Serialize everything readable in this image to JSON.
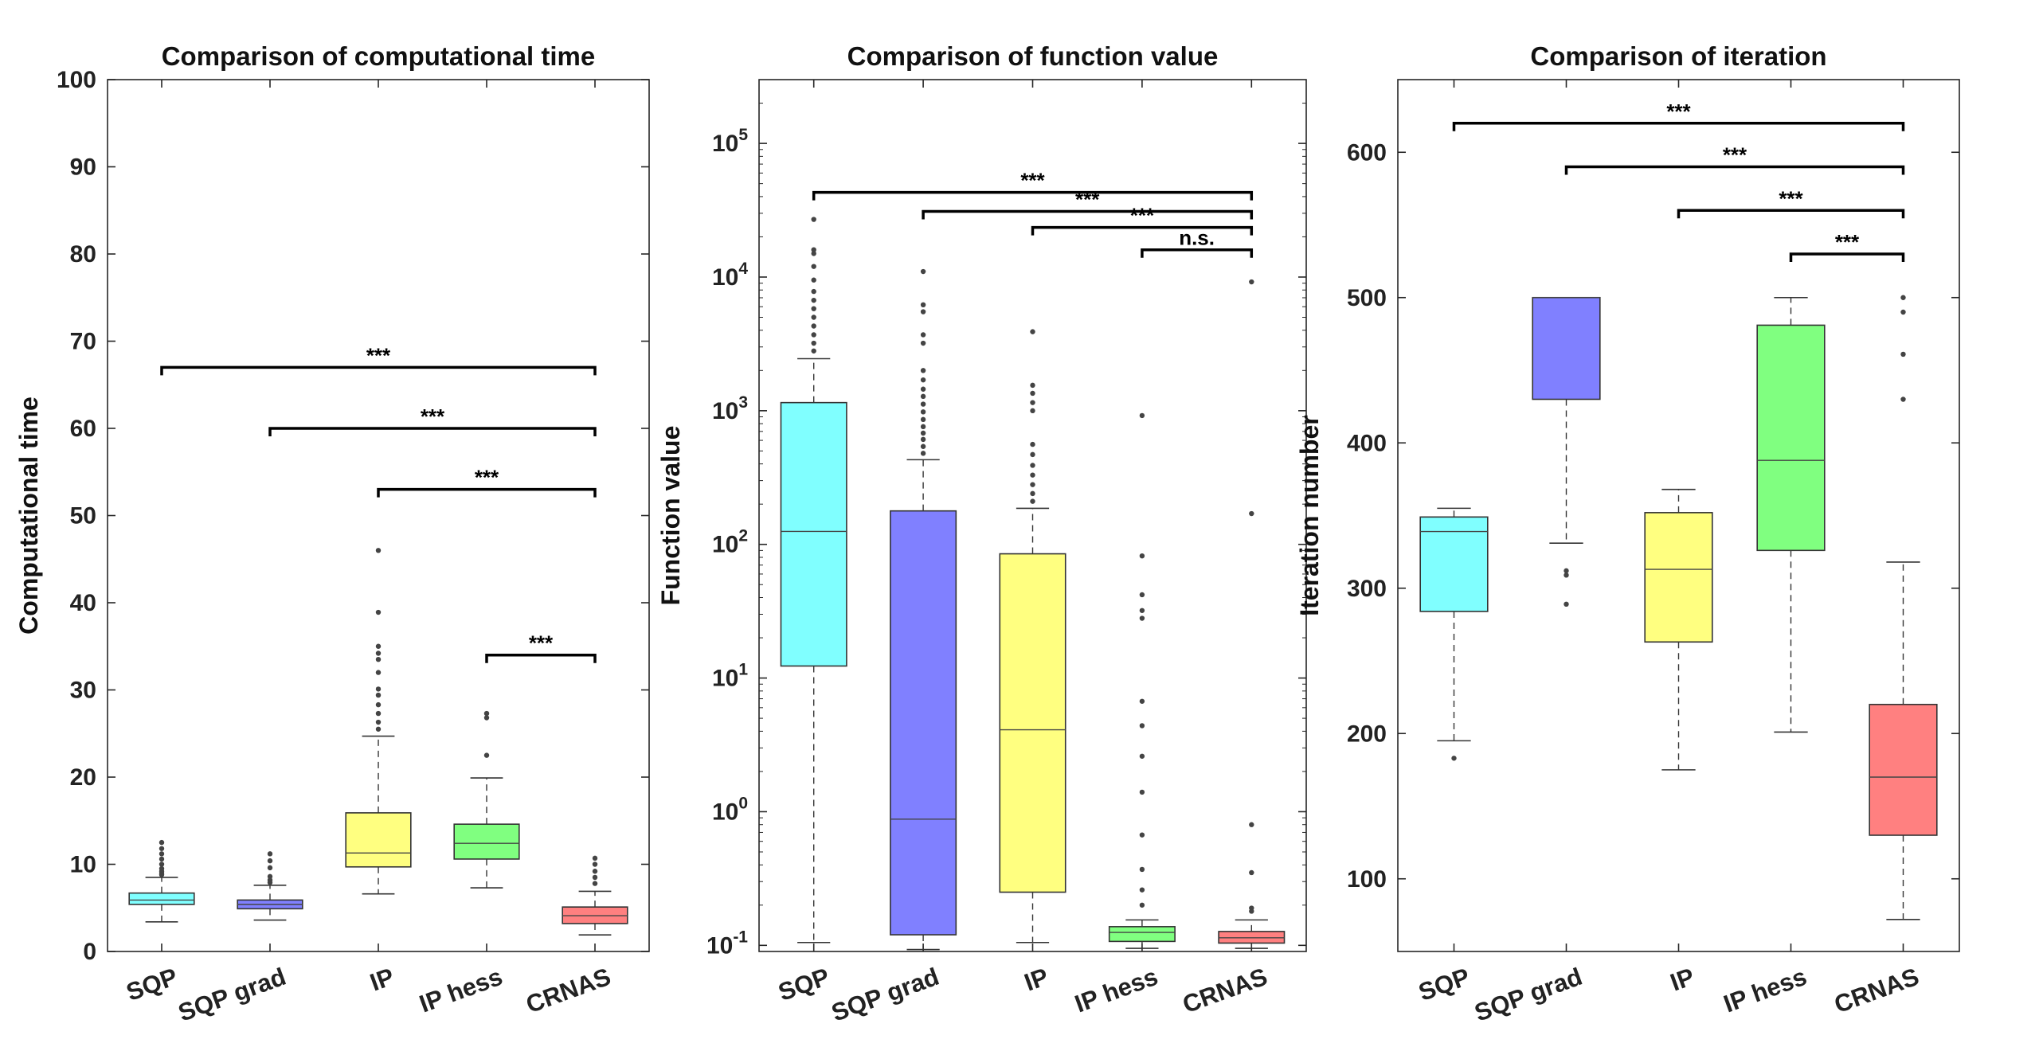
{
  "chart_data": [
    {
      "type": "box",
      "title": "Comparison of computational time",
      "xlabel": "",
      "ylabel": "Computational time",
      "yscale": "linear",
      "ylim": [
        0,
        100
      ],
      "yticks": [
        0,
        10,
        20,
        30,
        40,
        50,
        60,
        70,
        80,
        90,
        100
      ],
      "ytick_labels": [
        "0",
        "10",
        "20",
        "30",
        "40",
        "50",
        "60",
        "70",
        "80",
        "90",
        "100"
      ],
      "categories": [
        "SQP",
        "SQP grad",
        "IP",
        "IP hess",
        "CRNAS"
      ],
      "colors": [
        "#80ffff",
        "#8080ff",
        "#ffff80",
        "#80ff80",
        "#ff8080"
      ],
      "boxes": [
        {
          "whisker_low": 3.4,
          "q1": 5.4,
          "median": 5.9,
          "q3": 6.7,
          "whisker_high": 8.5,
          "outliers": [
            8.8,
            9.0,
            9.2,
            9.5,
            10.0,
            10.6,
            11.2,
            11.8,
            12.5
          ]
        },
        {
          "whisker_low": 3.6,
          "q1": 4.9,
          "median": 5.4,
          "q3": 5.9,
          "whisker_high": 7.6,
          "outliers": [
            7.9,
            8.2,
            8.6,
            9.6,
            10.4,
            11.2
          ]
        },
        {
          "whisker_low": 6.6,
          "q1": 9.7,
          "median": 11.3,
          "q3": 15.9,
          "whisker_high": 24.7,
          "outliers": [
            25.5,
            26.3,
            27.3,
            28.3,
            29.4,
            30.1,
            32.0,
            33.5,
            34.2,
            35.0,
            38.9,
            46.0
          ]
        },
        {
          "whisker_low": 7.3,
          "q1": 10.6,
          "median": 12.4,
          "q3": 14.6,
          "whisker_high": 19.9,
          "outliers": [
            22.5,
            26.8,
            27.3
          ]
        },
        {
          "whisker_low": 1.9,
          "q1": 3.2,
          "median": 4.1,
          "q3": 5.1,
          "whisker_high": 6.9,
          "outliers": [
            7.8,
            8.5,
            9.2,
            10.0,
            10.7
          ]
        }
      ],
      "significance": [
        {
          "from": "SQP",
          "to": "CRNAS",
          "y": 67,
          "label": "***"
        },
        {
          "from": "SQP grad",
          "to": "CRNAS",
          "y": 60,
          "label": "***"
        },
        {
          "from": "IP",
          "to": "CRNAS",
          "y": 53,
          "label": "***"
        },
        {
          "from": "IP hess",
          "to": "CRNAS",
          "y": 34,
          "label": "***"
        }
      ]
    },
    {
      "type": "box",
      "title": "Comparison of function value",
      "xlabel": "",
      "ylabel": "Function value",
      "yscale": "log",
      "ylim": [
        0.09,
        300000
      ],
      "yticks": [
        0.1,
        1,
        10,
        100,
        1000,
        10000,
        100000
      ],
      "ytick_labels": [
        [
          "10",
          "-1"
        ],
        [
          "10",
          "0"
        ],
        [
          "10",
          "1"
        ],
        [
          "10",
          "2"
        ],
        [
          "10",
          "3"
        ],
        [
          "10",
          "4"
        ],
        [
          "10",
          "5"
        ]
      ],
      "categories": [
        "SQP",
        "SQP grad",
        "IP",
        "IP hess",
        "CRNAS"
      ],
      "colors": [
        "#80ffff",
        "#8080ff",
        "#ffff80",
        "#80ff80",
        "#ff8080"
      ],
      "boxes": [
        {
          "whisker_low": 0.105,
          "q1": 12.3,
          "median": 125,
          "q3": 1150,
          "whisker_high": 2450,
          "outliers": [
            2800,
            3200,
            3700,
            4300,
            5000,
            5800,
            6700,
            7800,
            9500,
            12000,
            15000,
            16000,
            27000
          ]
        },
        {
          "whisker_low": 0.093,
          "q1": 0.12,
          "median": 0.88,
          "q3": 178,
          "whisker_high": 430,
          "outliers": [
            480,
            540,
            610,
            680,
            760,
            860,
            980,
            1120,
            1280,
            1450,
            1700,
            2000,
            3200,
            3700,
            5500,
            6200,
            11000
          ]
        },
        {
          "whisker_low": 0.105,
          "q1": 0.25,
          "median": 4.1,
          "q3": 85,
          "whisker_high": 186,
          "outliers": [
            210,
            240,
            280,
            330,
            390,
            470,
            560,
            1000,
            1150,
            1350,
            1550,
            3900
          ]
        },
        {
          "whisker_low": 0.095,
          "q1": 0.107,
          "median": 0.125,
          "q3": 0.138,
          "whisker_high": 0.155,
          "outliers": [
            0.2,
            0.26,
            0.37,
            0.67,
            1.4,
            2.6,
            4.4,
            6.7,
            28,
            32,
            42,
            82,
            920
          ]
        },
        {
          "whisker_low": 0.095,
          "q1": 0.104,
          "median": 0.114,
          "q3": 0.127,
          "whisker_high": 0.155,
          "outliers": [
            0.18,
            0.19,
            0.35,
            0.8,
            170,
            9200
          ]
        }
      ],
      "significance": [
        {
          "from": "SQP",
          "to": "CRNAS",
          "y": 43000,
          "label": "***"
        },
        {
          "from": "SQP grad",
          "to": "CRNAS",
          "y": 31000,
          "label": "***"
        },
        {
          "from": "IP",
          "to": "CRNAS",
          "y": 23500,
          "label": "***"
        },
        {
          "from": "IP hess",
          "to": "CRNAS",
          "y": 16000,
          "label": "n.s."
        }
      ]
    },
    {
      "type": "box",
      "title": "Comparison of iteration",
      "xlabel": "",
      "ylabel": "Iteration number",
      "yscale": "linear",
      "ylim": [
        50,
        650
      ],
      "yticks": [
        100,
        200,
        300,
        400,
        500,
        600
      ],
      "ytick_labels": [
        "100",
        "200",
        "300",
        "400",
        "500",
        "600"
      ],
      "categories": [
        "SQP",
        "SQP grad",
        "IP",
        "IP hess",
        "CRNAS"
      ],
      "colors": [
        "#80ffff",
        "#8080ff",
        "#ffff80",
        "#80ff80",
        "#ff8080"
      ],
      "boxes": [
        {
          "whisker_low": 195,
          "q1": 284,
          "median": 339,
          "q3": 349,
          "whisker_high": 355,
          "outliers": [
            183
          ]
        },
        {
          "whisker_low": 331,
          "q1": 430,
          "median": 500,
          "q3": 500,
          "whisker_high": 500,
          "outliers": [
            289,
            309,
            312
          ]
        },
        {
          "whisker_low": 175,
          "q1": 263,
          "median": 313,
          "q3": 352,
          "whisker_high": 368,
          "outliers": []
        },
        {
          "whisker_low": 201,
          "q1": 326,
          "median": 388,
          "q3": 481,
          "whisker_high": 500,
          "outliers": []
        },
        {
          "whisker_low": 72,
          "q1": 130,
          "median": 170,
          "q3": 220,
          "whisker_high": 318,
          "outliers": [
            430,
            461,
            490,
            500
          ]
        }
      ],
      "significance": [
        {
          "from": "SQP",
          "to": "CRNAS",
          "y": 620,
          "label": "***"
        },
        {
          "from": "SQP grad",
          "to": "CRNAS",
          "y": 590,
          "label": "***"
        },
        {
          "from": "IP",
          "to": "CRNAS",
          "y": 560,
          "label": "***"
        },
        {
          "from": "IP hess",
          "to": "CRNAS",
          "y": 530,
          "label": "***"
        }
      ]
    }
  ]
}
